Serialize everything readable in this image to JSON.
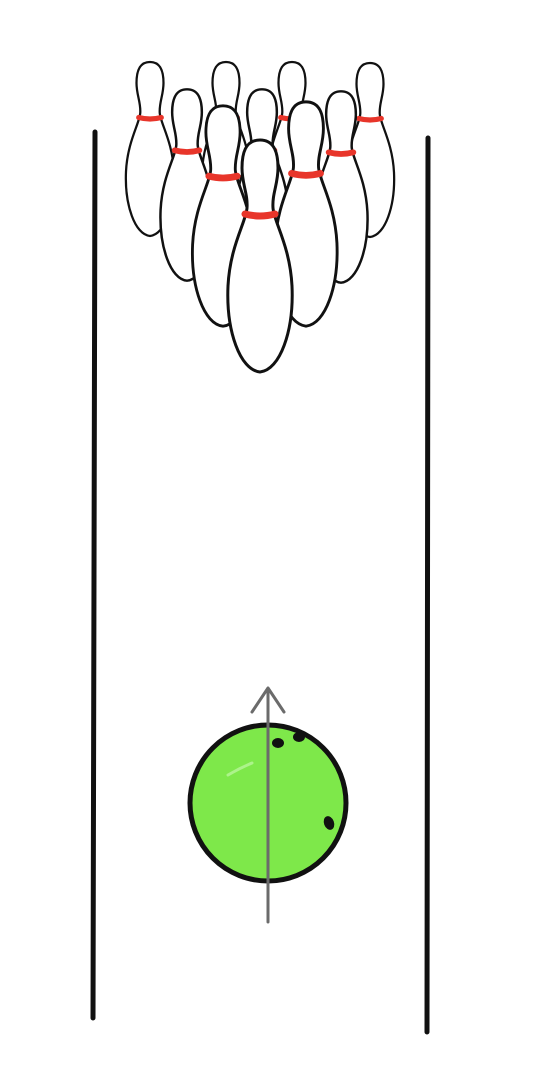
{
  "scene": {
    "subject": "bowling-lane",
    "colors": {
      "background": "#ffffff",
      "outline": "#111111",
      "pin_fill": "#ffffff",
      "pin_stripe": "#e8352a",
      "ball_fill": "#7ee84a",
      "ball_outline": "#111111",
      "ball_holes": "#111111",
      "arrow": "#6b6b6b"
    },
    "pins": {
      "count": 10,
      "rows": [
        4,
        3,
        2,
        1
      ]
    },
    "ball": {
      "finger_holes": 3
    },
    "arrow": {
      "direction": "up"
    }
  }
}
